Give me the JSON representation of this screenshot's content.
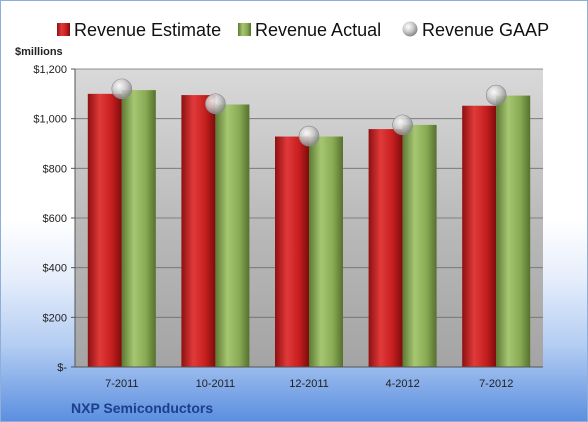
{
  "chart_data": {
    "type": "bar",
    "title": "",
    "ylabel": "$millions",
    "xlabel": "",
    "footer": "NXP Semiconductors",
    "categories": [
      "7-2011",
      "10-2011",
      "12-2011",
      "4-2012",
      "7-2012"
    ],
    "series": [
      {
        "name": "Revenue Estimate",
        "mark": "bar",
        "color": "#d42a2a",
        "values": [
          1100,
          1095,
          928,
          958,
          1052
        ]
      },
      {
        "name": "Revenue Actual",
        "mark": "bar",
        "color": "#8db05a",
        "values": [
          1115,
          1057,
          928,
          975,
          1093
        ]
      },
      {
        "name": "Revenue GAAP",
        "mark": "marker",
        "color": "#c6c6c6",
        "values": [
          1120,
          1060,
          930,
          975,
          1095
        ]
      }
    ],
    "ylim": [
      0,
      1200
    ],
    "yticks": [
      {
        "value": 0,
        "label": "$-"
      },
      {
        "value": 200,
        "label": "$200"
      },
      {
        "value": 400,
        "label": "$400"
      },
      {
        "value": 600,
        "label": "$600"
      },
      {
        "value": 800,
        "label": "$800"
      },
      {
        "value": 1000,
        "label": "$1,000"
      },
      {
        "value": 1200,
        "label": "$1,200"
      }
    ],
    "grid": true,
    "legend_position": "top"
  }
}
